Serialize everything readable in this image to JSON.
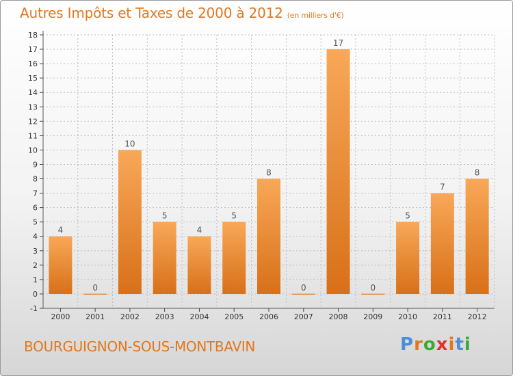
{
  "header": {
    "title": "Autres Impôts et Taxes de 2000 à 2012",
    "unit": "(en milliers d'€)"
  },
  "footer": {
    "commune": "BOURGUIGNON-SOUS-MONTBAVIN",
    "logo_text": "Proxiti"
  },
  "colors": {
    "title": "#e07820",
    "bar_top": "#f8a858",
    "bar_bottom": "#d87018",
    "logo_letters": [
      "#4a90d9",
      "#e07820",
      "#3aaa35",
      "#e03030",
      "#e07820",
      "#4a90d9",
      "#3aaa35"
    ]
  },
  "chart_data": {
    "type": "bar",
    "title": "Autres Impôts et Taxes de 2000 à 2012",
    "subtitle": "(en milliers d'€)",
    "xlabel": "",
    "ylabel": "",
    "categories": [
      "2000",
      "2001",
      "2002",
      "2003",
      "2004",
      "2005",
      "2006",
      "2007",
      "2008",
      "2009",
      "2010",
      "2011",
      "2012"
    ],
    "values": [
      4,
      0,
      10,
      5,
      4,
      5,
      8,
      0,
      17,
      0,
      5,
      7,
      8
    ],
    "ylim": [
      -1,
      18
    ],
    "yticks": [
      -1,
      0,
      1,
      2,
      3,
      4,
      5,
      6,
      7,
      8,
      9,
      10,
      11,
      12,
      13,
      14,
      15,
      16,
      17,
      18
    ],
    "grid": true
  }
}
